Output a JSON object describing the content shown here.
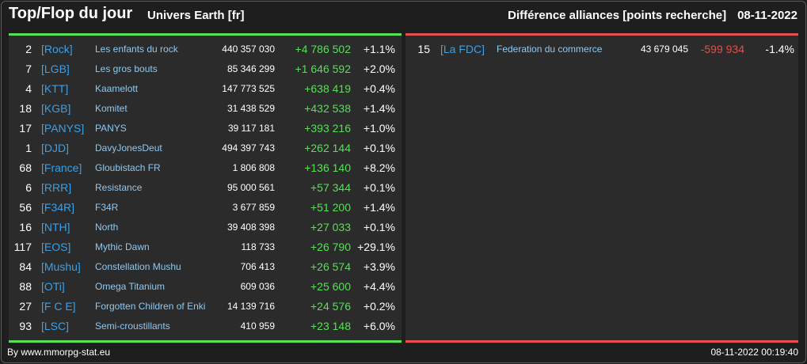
{
  "header": {
    "title": "Top/Flop du jour",
    "universe": "Univers Earth [fr]",
    "category": "Différence alliances [points recherche]",
    "date": "08-11-2022"
  },
  "colors": {
    "positive": "#55e055",
    "negative": "#e05050",
    "tag": "#3aa0e8"
  },
  "top": [
    {
      "rank": "2",
      "tag": "[Rock]",
      "name": "Les enfants du rock",
      "points": "440 357 030",
      "diff": "+4 786 502",
      "pct": "+1.1%"
    },
    {
      "rank": "7",
      "tag": "[LGB]",
      "name": "Les gros bouts",
      "points": "85 346 299",
      "diff": "+1 646 592",
      "pct": "+2.0%"
    },
    {
      "rank": "4",
      "tag": "[KTT]",
      "name": "Kaamelott",
      "points": "147 773 525",
      "diff": "+638 419",
      "pct": "+0.4%"
    },
    {
      "rank": "18",
      "tag": "[KGB]",
      "name": "Komitet",
      "points": "31 438 529",
      "diff": "+432 538",
      "pct": "+1.4%"
    },
    {
      "rank": "17",
      "tag": "[PANYS]",
      "name": "PANYS",
      "points": "39 117 181",
      "diff": "+393 216",
      "pct": "+1.0%"
    },
    {
      "rank": "1",
      "tag": "[DJD]",
      "name": "DavyJonesDeut",
      "points": "494 397 743",
      "diff": "+262 144",
      "pct": "+0.1%"
    },
    {
      "rank": "68",
      "tag": "[France]",
      "name": "Gloubistach FR",
      "points": "1 806 808",
      "diff": "+136 140",
      "pct": "+8.2%"
    },
    {
      "rank": "6",
      "tag": "[RRR]",
      "name": "Resistance",
      "points": "95 000 561",
      "diff": "+57 344",
      "pct": "+0.1%"
    },
    {
      "rank": "56",
      "tag": "[F34R]",
      "name": "F34R",
      "points": "3 677 859",
      "diff": "+51 200",
      "pct": "+1.4%"
    },
    {
      "rank": "16",
      "tag": "[NTH]",
      "name": "North",
      "points": "39 408 398",
      "diff": "+27 033",
      "pct": "+0.1%"
    },
    {
      "rank": "117",
      "tag": "[EOS]",
      "name": "Mythic Dawn",
      "points": "118 733",
      "diff": "+26 790",
      "pct": "+29.1%"
    },
    {
      "rank": "84",
      "tag": "[Mushu]",
      "name": "Constellation Mushu",
      "points": "706 413",
      "diff": "+26 574",
      "pct": "+3.9%"
    },
    {
      "rank": "88",
      "tag": "[OTi]",
      "name": "Omega Titanium",
      "points": "609 036",
      "diff": "+25 600",
      "pct": "+4.4%"
    },
    {
      "rank": "27",
      "tag": "[F C E]",
      "name": "Forgotten Children of Enki",
      "points": "14 139 716",
      "diff": "+24 576",
      "pct": "+0.2%"
    },
    {
      "rank": "93",
      "tag": "[LSC]",
      "name": "Semi-croustillants",
      "points": "410 959",
      "diff": "+23 148",
      "pct": "+6.0%"
    }
  ],
  "flop": [
    {
      "rank": "15",
      "tag": "[La FDC]",
      "name": "Federation du commerce",
      "points": "43 679 045",
      "diff": "-599 934",
      "pct": "-1.4%"
    }
  ],
  "footer": {
    "source": "By www.mmorpg-stat.eu",
    "timestamp": "08-11-2022 00:19:40"
  }
}
